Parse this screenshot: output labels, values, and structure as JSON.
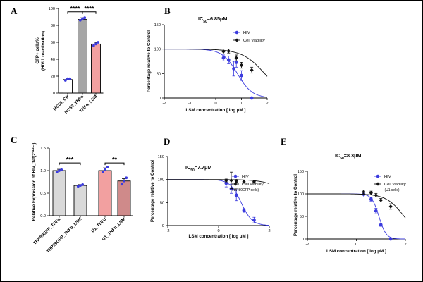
{
  "colors": {
    "hiv": "#3b3bde",
    "via": "#111111",
    "gray": "#a6a6a6",
    "pink": "#f2a0a0",
    "lightgray": "#d9d9d9",
    "darkpink": "#cf8a8a"
  },
  "chart_data": [
    {
      "id": "A",
      "letter": "A",
      "type": "bar",
      "ylabel": "GFP+ cells%\n(HIV-1 reactivation)",
      "categories": [
        "HC69_Ctr",
        "HC69_TNFα",
        "TNFα_LSM"
      ],
      "values": [
        16,
        87,
        58
      ],
      "errors": [
        1.5,
        2,
        2
      ],
      "points": [
        [
          15,
          17,
          17
        ],
        [
          86,
          88,
          89
        ],
        [
          56,
          58,
          60
        ]
      ],
      "bar_colors": [
        "#ffffff",
        "#a6a6a6",
        "#f2a0a0"
      ],
      "point_color": "#3b3bde",
      "ylim": [
        0,
        100
      ],
      "yticks": [
        0,
        20,
        40,
        60,
        80,
        100
      ],
      "significance": [
        {
          "from": 0,
          "to": 1,
          "label": "****",
          "y": 96
        },
        {
          "from": 1,
          "to": 2,
          "label": "****",
          "y": 96
        }
      ]
    },
    {
      "id": "B",
      "letter": "B",
      "type": "scatter",
      "title_main": "IC",
      "title_sub": "50",
      "title_rest": "=6.85μM",
      "xlabel": "LSM concentration [ log μM ]",
      "ylabel": "Percentage relative to Control",
      "xlim": [
        -2,
        2
      ],
      "ylim": [
        0,
        150
      ],
      "xticks": [
        -2,
        -1,
        0,
        1,
        2
      ],
      "yticks": [
        0,
        50,
        100,
        150
      ],
      "series": [
        {
          "name": "HIV",
          "marker": "circle",
          "color": "#3b3bde",
          "points": [
            {
              "x": 0.3,
              "y": 82,
              "err": 6
            },
            {
              "x": 0.5,
              "y": 78,
              "err": 8
            },
            {
              "x": 0.7,
              "y": 60,
              "err": 15
            },
            {
              "x": 0.8,
              "y": 73,
              "err": 10
            },
            {
              "x": 1.0,
              "y": 46,
              "err": 10
            },
            {
              "x": 1.4,
              "y": 0,
              "err": 0
            }
          ],
          "curve": {
            "top": 100,
            "bottom": 0,
            "logIC50": 0.84,
            "hill": 1.5
          }
        },
        {
          "name": "Cell viability",
          "marker": "diamond",
          "color": "#111111",
          "points": [
            {
              "x": 0.3,
              "y": 95,
              "err": 5
            },
            {
              "x": 0.5,
              "y": 96,
              "err": 4
            },
            {
              "x": 0.8,
              "y": 82,
              "err": 6
            },
            {
              "x": 1.0,
              "y": 67,
              "err": 6
            },
            {
              "x": 1.4,
              "y": 57,
              "err": 6
            }
          ],
          "curve": {
            "top": 100,
            "bottom": 0,
            "logIC50": 1.9,
            "hill": 1.0
          }
        }
      ]
    },
    {
      "id": "C",
      "letter": "C",
      "type": "bar",
      "ylabel": "Relative Expression of HIV_Tat(2",
      "ylabel_sup": "-ΔΔCt",
      "ylabel_end": ")",
      "categories": [
        "THP89GFP_TNFα",
        "THP89GFP_TNFα_LSM",
        "U1_TNFα",
        "U1_TNFα_LSM"
      ],
      "values": [
        1.0,
        0.67,
        1.0,
        0.77
      ],
      "errors": [
        0.03,
        0.02,
        0.06,
        0.05
      ],
      "points": [
        [
          0.97,
          1.0,
          1.02
        ],
        [
          0.65,
          0.67,
          0.69
        ],
        [
          0.97,
          1.02,
          1.08
        ],
        [
          0.7,
          0.77,
          0.84
        ]
      ],
      "bar_colors": [
        "#d9d9d9",
        "#d9d9d9",
        "#f2a0a0",
        "#cf8a8a"
      ],
      "point_color": "#3b3bde",
      "ylim": [
        0,
        1.5
      ],
      "yticks": [
        0.0,
        0.5,
        1.0,
        1.5
      ],
      "significance": [
        {
          "from": 0,
          "to": 1,
          "label": "***",
          "y": 1.17
        },
        {
          "from": 2,
          "to": 3,
          "label": "**",
          "y": 1.17
        }
      ]
    },
    {
      "id": "D",
      "letter": "D",
      "type": "scatter",
      "title_main": "IC",
      "title_sub": "50",
      "title_rest": "=7.7μM",
      "xlabel": "LSM concentration [ log μM ]",
      "ylabel": "Percentage relative to Control",
      "xlim": [
        -2,
        2
      ],
      "ylim": [
        0,
        150
      ],
      "xticks": [
        -2,
        0,
        2
      ],
      "yticks": [
        0,
        50,
        100,
        150
      ],
      "note": "(THP89GFP cells)",
      "series": [
        {
          "name": "HIV",
          "marker": "circle",
          "color": "#3b3bde",
          "points": [
            {
              "x": 0.3,
              "y": 92,
              "err": 8
            },
            {
              "x": 0.5,
              "y": 80,
              "err": 10
            },
            {
              "x": 0.7,
              "y": 66,
              "err": 12
            },
            {
              "x": 1.0,
              "y": 33,
              "err": 4
            },
            {
              "x": 1.4,
              "y": 12,
              "err": 6
            }
          ],
          "curve": {
            "top": 100,
            "bottom": 0,
            "logIC50": 0.89,
            "hill": 2.0
          }
        },
        {
          "name": "Cell viability",
          "marker": "diamond",
          "color": "#111111",
          "points": [
            {
              "x": 0.3,
              "y": 98,
              "err": 3
            },
            {
              "x": 0.5,
              "y": 98,
              "err": 18
            },
            {
              "x": 0.7,
              "y": 97,
              "err": 3
            },
            {
              "x": 1.0,
              "y": 95,
              "err": 3
            },
            {
              "x": 1.4,
              "y": 95,
              "err": 3
            }
          ],
          "curve": {
            "top": 100,
            "bottom": 0,
            "logIC50": 3.0,
            "hill": 1.0
          }
        }
      ]
    },
    {
      "id": "E",
      "letter": "E",
      "type": "scatter",
      "title_main": "IC",
      "title_sub": "50",
      "title_rest": "=8.3μM",
      "xlabel": "LSM concentration [ log μM ]",
      "ylabel": "Percentage relative to Control",
      "xlim": [
        -2,
        2
      ],
      "ylim": [
        0,
        150
      ],
      "xticks": [
        -2,
        0,
        2
      ],
      "yticks": [
        0,
        50,
        100,
        150
      ],
      "note": "(U1 cells)",
      "series": [
        {
          "name": "HIV",
          "marker": "circle",
          "color": "#3b3bde",
          "points": [
            {
              "x": 0.3,
              "y": 99,
              "err": 6
            },
            {
              "x": 0.6,
              "y": 88,
              "err": 4
            },
            {
              "x": 0.8,
              "y": 62,
              "err": 6
            },
            {
              "x": 1.0,
              "y": 31,
              "err": 3
            },
            {
              "x": 1.4,
              "y": 0,
              "err": 0
            }
          ],
          "curve": {
            "top": 100,
            "bottom": 0,
            "logIC50": 0.92,
            "hill": 3.0
          }
        },
        {
          "name": "Cell viability",
          "marker": "diamond",
          "color": "#111111",
          "points": [
            {
              "x": 0.3,
              "y": 104,
              "err": 4
            },
            {
              "x": 0.6,
              "y": 102,
              "err": 4
            },
            {
              "x": 0.8,
              "y": 97,
              "err": 4
            },
            {
              "x": 1.0,
              "y": 86,
              "err": 4
            },
            {
              "x": 1.4,
              "y": 72,
              "err": 6
            }
          ],
          "curve": {
            "top": 100,
            "bottom": 0,
            "logIC50": 1.95,
            "hill": 1.2
          }
        }
      ]
    }
  ]
}
